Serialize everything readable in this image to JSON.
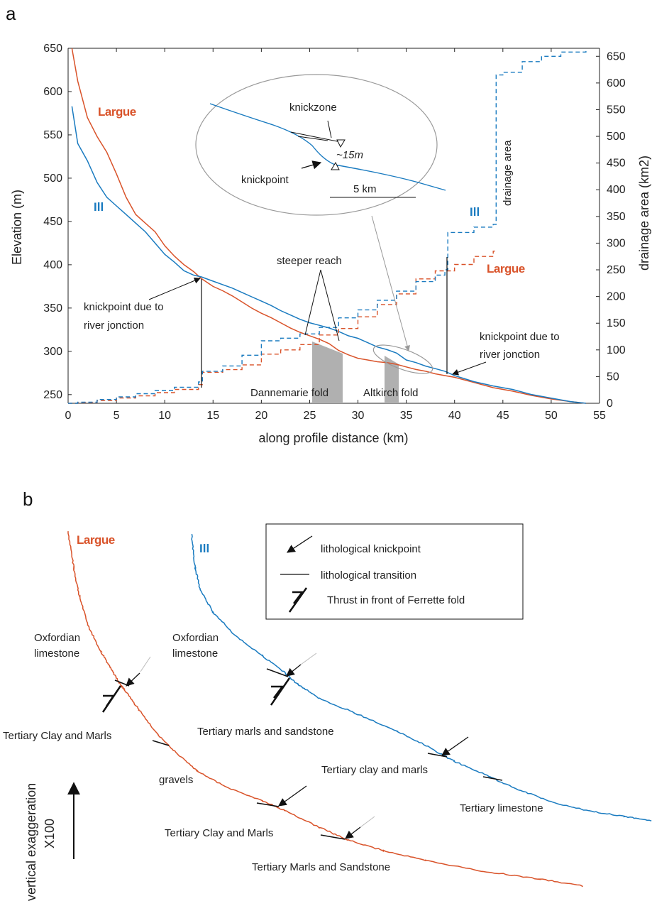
{
  "panel_a_label": "a",
  "panel_b_label": "b",
  "chart_data": {
    "type": "line",
    "xlabel": "along profile distance (km)",
    "ylabel": "Elevation (m)",
    "y2label": "drainage area (km2)",
    "xlim": [
      0,
      55
    ],
    "ylim": [
      240,
      650
    ],
    "y2lim": [
      0,
      665
    ],
    "x_ticks": [
      "0",
      "5",
      "10",
      "15",
      "20",
      "25",
      "30",
      "35",
      "40",
      "45",
      "50",
      "55"
    ],
    "y_ticks": [
      "250",
      "300",
      "350",
      "400",
      "450",
      "500",
      "550",
      "600",
      "650"
    ],
    "y2_ticks": [
      "0",
      "50",
      "100",
      "150",
      "200",
      "250",
      "300",
      "350",
      "400",
      "450",
      "500",
      "550",
      "600",
      "650"
    ],
    "series": [
      {
        "name": "Largue",
        "kind": "elevation",
        "color": "#d9532a",
        "x": [
          0.4,
          1,
          2,
          3,
          4,
          5,
          6,
          7,
          8,
          9,
          10,
          11,
          12,
          13,
          13.8,
          15,
          16,
          17,
          18,
          19,
          20,
          21,
          22,
          23,
          24,
          25,
          26,
          27,
          28,
          29,
          30,
          31,
          32,
          33,
          34,
          35,
          36,
          37,
          38,
          39,
          40,
          42,
          44,
          46,
          48,
          50,
          52,
          53.6
        ],
        "y": [
          650,
          612,
          570,
          548,
          530,
          505,
          478,
          458,
          448,
          438,
          422,
          410,
          400,
          392,
          384,
          375,
          370,
          364,
          357,
          350,
          344,
          339,
          333,
          327,
          322,
          318,
          314,
          309,
          301,
          296,
          292,
          290,
          288,
          287,
          285,
          282,
          279,
          277,
          274,
          272,
          270,
          264,
          258,
          254,
          249,
          245,
          242,
          240
        ]
      },
      {
        "name": "Ill",
        "kind": "elevation",
        "color": "#1a7bc0",
        "x": [
          0.4,
          1,
          2,
          3,
          4,
          5,
          6,
          7,
          8,
          9,
          10,
          11,
          12,
          13,
          13.8,
          15,
          16,
          17,
          18,
          19,
          20,
          21,
          22,
          23,
          24,
          25,
          26,
          27,
          28,
          29,
          30,
          31,
          32,
          33,
          34,
          35,
          36,
          37,
          38,
          39,
          40,
          42,
          44,
          46,
          48,
          50,
          52,
          53.6
        ],
        "y": [
          583,
          540,
          520,
          495,
          478,
          468,
          458,
          448,
          438,
          425,
          412,
          403,
          393,
          388,
          386,
          381,
          377,
          373,
          368,
          363,
          358,
          353,
          347,
          342,
          337,
          333,
          330,
          327,
          323,
          318,
          315,
          310,
          305,
          302,
          298,
          290,
          287,
          283,
          280,
          277,
          272,
          265,
          260,
          256,
          250,
          246,
          242,
          240
        ]
      },
      {
        "name": "Largue",
        "kind": "drainage_area",
        "color": "#d9532a",
        "x": [
          0,
          1,
          3,
          5,
          7,
          9,
          11,
          13.5,
          13.9,
          16,
          18,
          20,
          22,
          24,
          26,
          28,
          30,
          32,
          34,
          36,
          38,
          40,
          42,
          44,
          44.2
        ],
        "y": [
          0,
          1,
          5,
          10,
          14,
          20,
          26,
          35,
          58,
          63,
          72,
          92,
          100,
          110,
          128,
          140,
          162,
          185,
          205,
          233,
          248,
          260,
          275,
          285,
          290
        ]
      },
      {
        "name": "Ill",
        "kind": "drainage_area",
        "color": "#1a7bc0",
        "x": [
          0,
          1,
          3,
          5,
          7,
          9,
          11,
          13.5,
          13.9,
          16,
          18,
          20,
          22,
          24,
          26,
          28,
          30,
          32,
          34,
          36,
          38,
          39,
          39.3,
          42,
          44,
          44.3,
          45,
          47,
          49,
          51,
          53.6
        ],
        "y": [
          0,
          2,
          7,
          12,
          18,
          24,
          30,
          40,
          60,
          70,
          90,
          117,
          122,
          130,
          142,
          160,
          175,
          193,
          210,
          228,
          240,
          250,
          320,
          330,
          335,
          615,
          620,
          640,
          650,
          658,
          665
        ]
      }
    ],
    "annotations": {
      "largue_label": "Largue",
      "ill_label": "Ill",
      "largue_label_right": "Largue",
      "ill_label_right": "Ill",
      "drainage_area": "drainage area",
      "knickzone": "knickzone",
      "knickpoint": "knickpoint",
      "drop": "~15m",
      "scale": "5 km",
      "knick_jonction_left_1": "knickpoint due to",
      "knick_jonction_left_2": "river jonction",
      "knick_jonction_right_1": "knickpoint due to",
      "knick_jonction_right_2": "river jonction",
      "steeper_reach": "steeper reach",
      "dannemarie": "Dannemarie fold",
      "altkirch": "Altkirch fold"
    }
  },
  "panel_b": {
    "largue_label": "Largue",
    "ill_label": "Ill",
    "legend": {
      "knickpoint": "lithological knickpoint",
      "transition": "lithological transition",
      "thrust": "Thrust in front of Ferrette fold"
    },
    "largue_units": {
      "oxfordian_1": "Oxfordian",
      "oxfordian_2": "limestone",
      "clay_marls": "Tertiary Clay and Marls",
      "gravels": "gravels",
      "clay_marls_2": "Tertiary Clay and Marls",
      "marls_sandstone": "Tertiary Marls and Sandstone"
    },
    "ill_units": {
      "oxfordian_1": "Oxfordian",
      "oxfordian_2": "limestone",
      "marls_sandstone": "Tertiary marls and sandstone",
      "clay_marls": "Tertiary clay and marls",
      "limestone": "Tertiary limestone"
    },
    "vertical_1": "vertical exaggeration",
    "vertical_2": "X100"
  }
}
